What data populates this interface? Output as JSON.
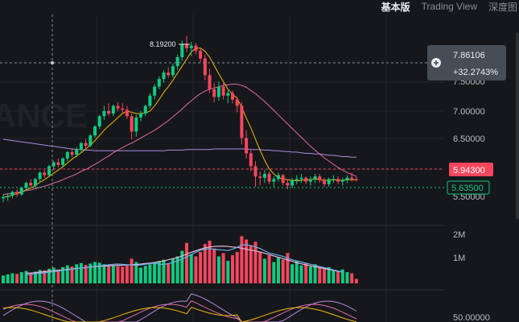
{
  "tabs": [
    "基本版",
    "Trading View",
    "深度图"
  ],
  "watermark": "ANCE",
  "colors": {
    "background": "#16171b",
    "up": "#0ecb81",
    "down": "#f6465d",
    "ma7": "#f0b90b",
    "ma25": "#e06ba8",
    "ma99": "#a88de0",
    "grid": "#22252b",
    "axis_text": "#b7bdc6"
  },
  "price_axis": {
    "ticks": [
      "7.50000",
      "7.00000",
      "6.50000"
    ],
    "range": [
      5.3,
      8.5
    ]
  },
  "volume_axis": {
    "ticks": [
      "2M",
      "1M"
    ],
    "max": 2.4
  },
  "indicator_axis": {
    "ticks": [
      "50.00000"
    ]
  },
  "crosshair": {
    "price": "7.86106",
    "change": "+32.2743%",
    "plus_icon": "plus-circle-icon"
  },
  "high_label": "8.19200",
  "current_price": "5.94300",
  "reference_price": "5.63500",
  "cropped_axis_label": "5.50000",
  "chart_data": {
    "type": "candlestick",
    "title": "",
    "candles": [
      [
        5.66,
        5.72,
        5.6,
        5.68
      ],
      [
        5.68,
        5.74,
        5.62,
        5.7
      ],
      [
        5.7,
        5.78,
        5.66,
        5.76
      ],
      [
        5.76,
        5.8,
        5.68,
        5.72
      ],
      [
        5.72,
        5.84,
        5.7,
        5.82
      ],
      [
        5.82,
        5.92,
        5.78,
        5.9
      ],
      [
        5.9,
        5.96,
        5.84,
        5.86
      ],
      [
        5.86,
        5.98,
        5.82,
        5.96
      ],
      [
        5.96,
        6.08,
        5.92,
        6.06
      ],
      [
        6.06,
        6.1,
        5.98,
        6.02
      ],
      [
        6.02,
        6.18,
        6.0,
        6.16
      ],
      [
        6.16,
        6.24,
        6.1,
        6.22
      ],
      [
        6.22,
        6.28,
        6.14,
        6.18
      ],
      [
        6.18,
        6.3,
        6.14,
        6.28
      ],
      [
        6.28,
        6.4,
        6.24,
        6.38
      ],
      [
        6.38,
        6.44,
        6.3,
        6.34
      ],
      [
        6.34,
        6.46,
        6.3,
        6.42
      ],
      [
        6.42,
        6.54,
        6.38,
        6.52
      ],
      [
        6.52,
        6.58,
        6.44,
        6.48
      ],
      [
        6.48,
        6.66,
        6.46,
        6.64
      ],
      [
        6.64,
        6.8,
        6.6,
        6.78
      ],
      [
        6.78,
        6.96,
        6.74,
        6.94
      ],
      [
        6.94,
        7.1,
        6.88,
        7.02
      ],
      [
        7.02,
        7.14,
        6.94,
        6.98
      ],
      [
        6.98,
        7.12,
        6.94,
        7.1
      ],
      [
        7.1,
        7.16,
        7.02,
        7.06
      ],
      [
        7.06,
        7.14,
        6.98,
        7.04
      ],
      [
        7.04,
        7.1,
        6.9,
        6.94
      ],
      [
        6.94,
        6.98,
        6.58,
        6.7
      ],
      [
        6.7,
        6.96,
        6.62,
        6.92
      ],
      [
        6.92,
        7.02,
        6.86,
        6.98
      ],
      [
        6.98,
        7.12,
        6.94,
        7.1
      ],
      [
        7.1,
        7.3,
        7.06,
        7.26
      ],
      [
        7.26,
        7.44,
        7.2,
        7.4
      ],
      [
        7.4,
        7.56,
        7.36,
        7.52
      ],
      [
        7.52,
        7.66,
        7.46,
        7.62
      ],
      [
        7.62,
        7.7,
        7.54,
        7.58
      ],
      [
        7.58,
        7.76,
        7.54,
        7.72
      ],
      [
        7.72,
        7.9,
        7.66,
        7.86
      ],
      [
        7.86,
        8.12,
        7.8,
        8.06
      ],
      [
        8.06,
        8.192,
        7.94,
        8.0
      ],
      [
        8.0,
        8.1,
        7.88,
        8.04
      ],
      [
        8.04,
        8.08,
        7.9,
        7.96
      ],
      [
        7.96,
        8.0,
        7.78,
        7.84
      ],
      [
        7.84,
        7.9,
        7.5,
        7.58
      ],
      [
        7.58,
        7.68,
        7.3,
        7.36
      ],
      [
        7.36,
        7.46,
        7.16,
        7.24
      ],
      [
        7.24,
        7.48,
        7.18,
        7.4
      ],
      [
        7.4,
        7.46,
        7.2,
        7.26
      ],
      [
        7.26,
        7.36,
        7.14,
        7.3
      ],
      [
        7.3,
        7.34,
        7.14,
        7.2
      ],
      [
        7.2,
        7.24,
        7.0,
        7.1
      ],
      [
        7.1,
        7.16,
        6.5,
        6.6
      ],
      [
        6.6,
        6.72,
        6.28,
        6.36
      ],
      [
        6.36,
        6.42,
        6.08,
        6.16
      ],
      [
        6.16,
        6.24,
        5.84,
        6.0
      ],
      [
        6.0,
        6.08,
        5.86,
        5.98
      ],
      [
        5.98,
        6.1,
        5.9,
        6.04
      ],
      [
        6.04,
        6.08,
        5.88,
        5.92
      ],
      [
        5.92,
        6.0,
        5.84,
        5.96
      ],
      [
        5.96,
        6.06,
        5.92,
        6.02
      ],
      [
        6.02,
        6.04,
        5.86,
        5.9
      ],
      [
        5.9,
        5.96,
        5.8,
        5.86
      ],
      [
        5.86,
        5.98,
        5.82,
        5.94
      ],
      [
        5.94,
        6.02,
        5.88,
        5.96
      ],
      [
        5.96,
        6.04,
        5.9,
        5.98
      ],
      [
        5.98,
        6.0,
        5.88,
        5.92
      ],
      [
        5.92,
        6.0,
        5.86,
        5.96
      ],
      [
        5.96,
        6.04,
        5.9,
        6.0
      ],
      [
        6.0,
        6.04,
        5.9,
        5.94
      ],
      [
        5.94,
        5.98,
        5.84,
        5.88
      ],
      [
        5.88,
        5.98,
        5.84,
        5.96
      ],
      [
        5.96,
        6.02,
        5.9,
        5.96
      ],
      [
        5.96,
        6.0,
        5.88,
        5.92
      ],
      [
        5.92,
        5.98,
        5.86,
        5.94
      ],
      [
        5.94,
        6.02,
        5.9,
        5.98
      ],
      [
        5.98,
        6.06,
        5.92,
        5.96
      ],
      [
        5.96,
        6.0,
        5.92,
        5.943
      ]
    ],
    "volumes": [
      0.35,
      0.4,
      0.45,
      0.42,
      0.5,
      0.55,
      0.48,
      0.52,
      0.6,
      0.58,
      0.65,
      0.7,
      0.62,
      0.72,
      0.8,
      0.75,
      0.85,
      0.9,
      0.82,
      0.88,
      0.95,
      0.92,
      0.85,
      0.8,
      0.78,
      0.76,
      0.74,
      0.8,
      1.1,
      0.95,
      0.7,
      0.78,
      0.85,
      0.92,
      1.0,
      1.05,
      0.9,
      1.1,
      1.2,
      1.45,
      1.8,
      1.3,
      1.2,
      1.4,
      1.75,
      1.9,
      1.55,
      1.2,
      1.35,
      1.0,
      1.25,
      1.4,
      2.1,
      1.95,
      1.7,
      1.85,
      1.4,
      1.1,
      1.25,
      0.95,
      1.15,
      1.05,
      1.35,
      0.85,
      1.0,
      0.8,
      0.9,
      0.75,
      0.85,
      0.7,
      0.65,
      0.72,
      0.6,
      0.55,
      0.62,
      0.5,
      0.45,
      0.2
    ],
    "ma7": [
      5.67,
      5.69,
      5.71,
      5.73,
      5.76,
      5.79,
      5.82,
      5.86,
      5.91,
      5.95,
      6.0,
      6.05,
      6.1,
      6.15,
      6.21,
      6.27,
      6.32,
      6.37,
      6.43,
      6.49,
      6.56,
      6.64,
      6.72,
      6.79,
      6.85,
      6.92,
      6.98,
      7.02,
      7.0,
      6.98,
      6.98,
      6.99,
      7.02,
      7.1,
      7.2,
      7.31,
      7.4,
      7.5,
      7.61,
      7.72,
      7.83,
      7.94,
      8.0,
      8.0,
      7.95,
      7.86,
      7.73,
      7.6,
      7.48,
      7.36,
      7.28,
      7.22,
      7.08,
      6.91,
      6.76,
      6.58,
      6.41,
      6.25,
      6.12,
      6.04,
      5.98,
      5.96,
      5.95,
      5.94,
      5.93,
      5.94,
      5.95,
      5.95,
      5.96,
      5.95,
      5.94,
      5.94,
      5.95,
      5.94,
      5.94,
      5.95,
      5.95,
      5.95
    ],
    "ma25": [
      5.72,
      5.73,
      5.74,
      5.75,
      5.76,
      5.78,
      5.79,
      5.81,
      5.83,
      5.85,
      5.87,
      5.9,
      5.92,
      5.95,
      5.98,
      6.01,
      6.04,
      6.08,
      6.11,
      6.15,
      6.19,
      6.23,
      6.28,
      6.32,
      6.37,
      6.41,
      6.45,
      6.49,
      6.52,
      6.56,
      6.6,
      6.64,
      6.68,
      6.72,
      6.77,
      6.82,
      6.87,
      6.93,
      6.99,
      7.05,
      7.12,
      7.18,
      7.24,
      7.29,
      7.33,
      7.36,
      7.38,
      7.4,
      7.42,
      7.43,
      7.44,
      7.44,
      7.42,
      7.39,
      7.34,
      7.29,
      7.23,
      7.17,
      7.1,
      7.03,
      6.96,
      6.89,
      6.82,
      6.75,
      6.68,
      6.61,
      6.54,
      6.47,
      6.41,
      6.35,
      6.29,
      6.24,
      6.19,
      6.14,
      6.1,
      6.06,
      6.03,
      6.0
    ],
    "ma99": [
      6.58,
      6.57,
      6.56,
      6.55,
      6.54,
      6.53,
      6.52,
      6.51,
      6.5,
      6.49,
      6.48,
      6.47,
      6.46,
      6.45,
      6.44,
      6.43,
      6.42,
      6.42,
      6.41,
      6.41,
      6.4,
      6.4,
      6.4,
      6.4,
      6.4,
      6.4,
      6.4,
      6.4,
      6.4,
      6.4,
      6.4,
      6.4,
      6.4,
      6.4,
      6.4,
      6.4,
      6.41,
      6.41,
      6.41,
      6.41,
      6.42,
      6.42,
      6.42,
      6.42,
      6.42,
      6.42,
      6.43,
      6.43,
      6.43,
      6.43,
      6.43,
      6.43,
      6.43,
      6.43,
      6.42,
      6.42,
      6.42,
      6.41,
      6.41,
      6.4,
      6.4,
      6.39,
      6.39,
      6.38,
      6.38,
      6.37,
      6.36,
      6.36,
      6.35,
      6.35,
      6.34,
      6.33,
      6.33,
      6.32,
      6.31,
      6.31,
      6.3,
      6.3
    ],
    "vol_ma5": [
      0.38,
      0.4,
      0.42,
      0.45,
      0.47,
      0.5,
      0.52,
      0.55,
      0.58,
      0.6,
      0.63,
      0.66,
      0.68,
      0.7,
      0.73,
      0.76,
      0.78,
      0.8,
      0.83,
      0.85,
      0.86,
      0.85,
      0.83,
      0.82,
      0.8,
      0.82,
      0.85,
      0.88,
      0.9,
      0.86,
      0.84,
      0.88,
      0.94,
      1.0,
      1.08,
      1.18,
      1.28,
      1.38,
      1.48,
      1.52,
      1.54,
      1.52,
      1.5,
      1.48,
      1.46,
      1.52,
      1.6,
      1.7,
      1.72,
      1.68,
      1.62,
      1.55,
      1.45,
      1.35,
      1.3,
      1.25,
      1.2,
      1.12,
      1.05,
      1.0,
      0.95,
      0.9,
      0.85,
      0.8,
      0.75,
      0.7,
      0.66,
      0.6,
      0.55,
      0.5
    ],
    "vol_ma10": [
      0.45,
      0.46,
      0.48,
      0.5,
      0.52,
      0.54,
      0.56,
      0.58,
      0.6,
      0.62,
      0.64,
      0.66,
      0.68,
      0.7,
      0.72,
      0.74,
      0.76,
      0.77,
      0.78,
      0.79,
      0.8,
      0.81,
      0.82,
      0.83,
      0.84,
      0.86,
      0.88,
      0.9,
      0.93,
      0.96,
      1.0,
      1.05,
      1.1,
      1.15,
      1.22,
      1.3,
      1.38,
      1.45,
      1.52,
      1.58,
      1.62,
      1.64,
      1.65,
      1.65,
      1.64,
      1.62,
      1.6,
      1.56,
      1.52,
      1.48,
      1.44,
      1.4,
      1.34,
      1.28,
      1.22,
      1.16,
      1.1,
      1.04,
      0.98,
      0.92,
      0.87,
      0.82,
      0.78,
      0.74,
      0.7,
      0.66,
      0.62,
      0.58,
      0.54,
      0.5
    ]
  }
}
